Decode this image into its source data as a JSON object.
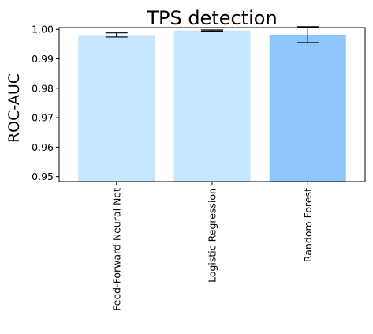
{
  "chart_data": {
    "type": "bar",
    "title": "TPS detection",
    "xlabel": "",
    "ylabel": "ROC-AUC",
    "ylim": [
      0.9483,
      1.0006
    ],
    "yticks": [
      0.95,
      0.96,
      0.97,
      0.98,
      0.99,
      1.0
    ],
    "ytick_labels": [
      "0.95",
      "0.96",
      "0.97",
      "0.98",
      "0.99",
      "1.00"
    ],
    "categories": [
      "Feed-Forward Neural Net",
      "Logistic Regression",
      "Random Forest"
    ],
    "values": [
      0.9981,
      0.9996,
      0.9982
    ],
    "errors": [
      0.0007,
      0.0002,
      0.0027
    ],
    "colors": [
      "#c5e6fd",
      "#c5e6fd",
      "#8ec5fd"
    ],
    "grid": false,
    "legend": "none"
  }
}
